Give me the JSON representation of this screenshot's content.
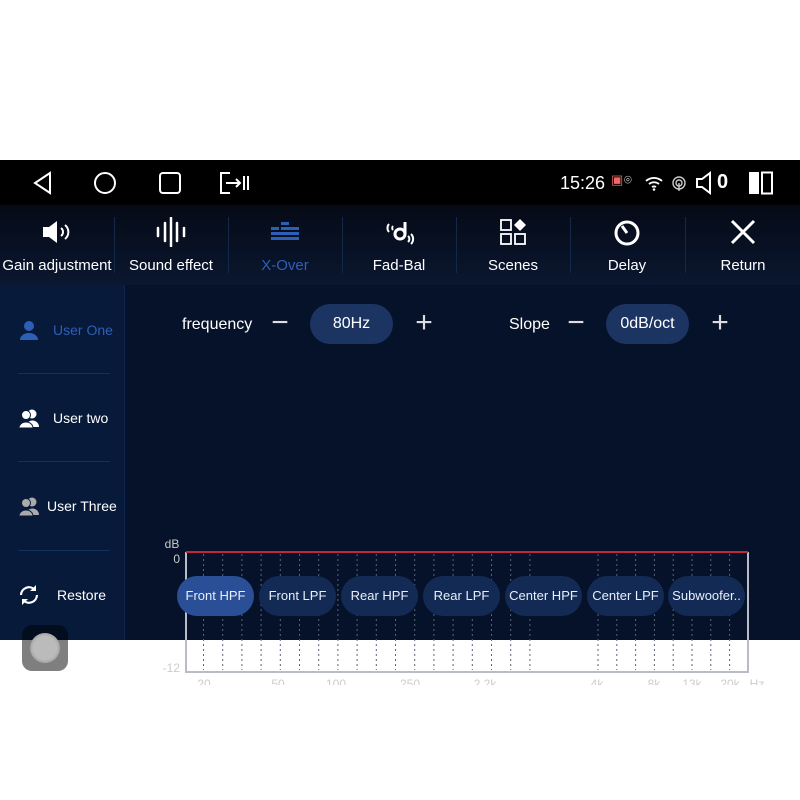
{
  "status_bar": {
    "time": "15:26",
    "volume": "0",
    "icons": [
      "back-icon",
      "home-icon",
      "recents-icon",
      "screen-switch-icon",
      "cast-icon",
      "location-icon",
      "wifi-icon",
      "hotspot-icon",
      "speaker-icon",
      "split-screen-icon"
    ]
  },
  "menu": {
    "items": [
      {
        "label": "Gain adjustment",
        "icon": "speaker-icon"
      },
      {
        "label": "Sound effect",
        "icon": "waveform-icon"
      },
      {
        "label": "X-Over",
        "icon": "equalizer-icon",
        "active": true
      },
      {
        "label": "Fad-Bal",
        "icon": "seat-sound-icon"
      },
      {
        "label": "Scenes",
        "icon": "grid-icon"
      },
      {
        "label": "Delay",
        "icon": "timer-icon"
      },
      {
        "label": "Return",
        "icon": "close-icon"
      }
    ]
  },
  "sidebar": {
    "items": [
      {
        "label": "User One",
        "icon": "user-icon",
        "active": true
      },
      {
        "label": "User two",
        "icon": "users-icon"
      },
      {
        "label": "User Three",
        "icon": "users-icon"
      },
      {
        "label": "Restore",
        "icon": "restore-icon"
      }
    ]
  },
  "controls": {
    "frequency": {
      "label": "frequency",
      "value": "80Hz"
    },
    "slope": {
      "label": "Slope",
      "value": "0dB/oct"
    }
  },
  "colors": {
    "accent": "#2c5fb8",
    "curve": "#c0283a",
    "background": "#06112a"
  },
  "chart_data": {
    "type": "line",
    "ylabel": "dB",
    "xunit": "Hz",
    "ylim": [
      -12,
      0
    ],
    "yticks": [
      "0",
      "-12"
    ],
    "xticks": [
      "20",
      "50",
      "100",
      "250",
      "2.2k",
      "4k",
      "8k",
      "13k",
      "20k"
    ],
    "series": [
      {
        "values": [
          0,
          0,
          0,
          0,
          0,
          0,
          0,
          0,
          0
        ]
      }
    ]
  },
  "tabs": [
    {
      "label": "Front HPF",
      "active": true
    },
    {
      "label": "Front LPF"
    },
    {
      "label": "Rear HPF"
    },
    {
      "label": "Rear LPF"
    },
    {
      "label": "Center HPF"
    },
    {
      "label": "Center LPF"
    },
    {
      "label": "Subwoofer.."
    }
  ]
}
